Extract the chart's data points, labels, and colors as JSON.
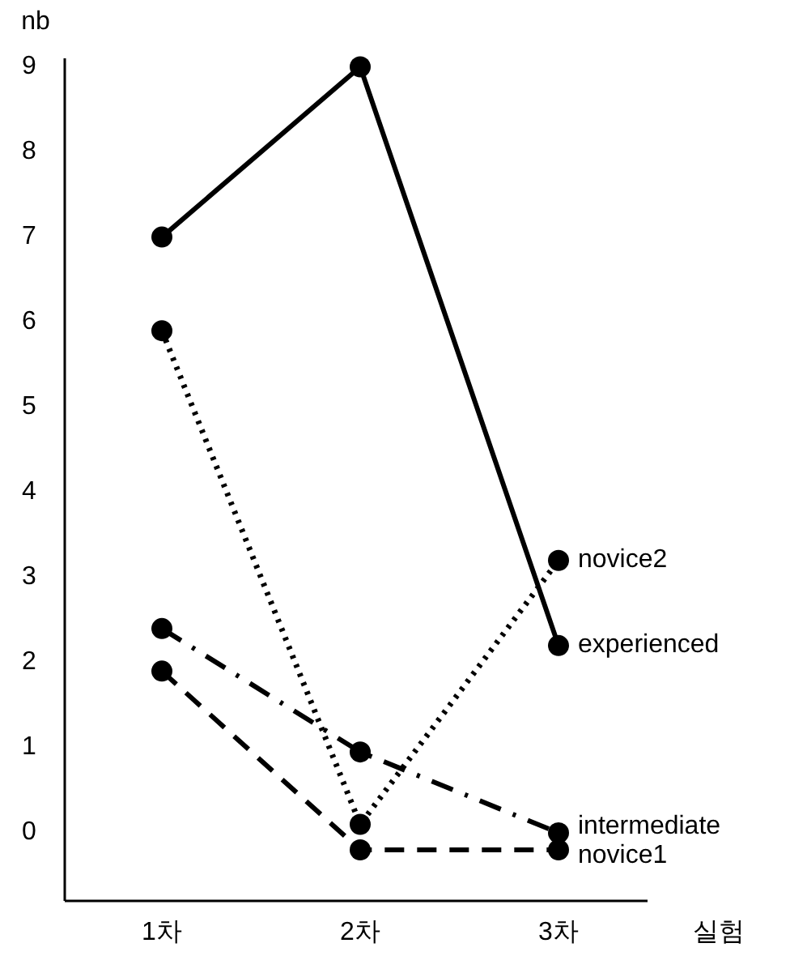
{
  "chart_data": {
    "type": "line",
    "xlabel": "실험",
    "ylabel": "nb",
    "categories": [
      "1차",
      "2차",
      "3차"
    ],
    "ylim": [
      -0.8,
      9.1
    ],
    "yticks": [
      0,
      1,
      2,
      3,
      4,
      5,
      6,
      7,
      8,
      9
    ],
    "grid": false,
    "marker": "circle",
    "series": [
      {
        "name": "experienced",
        "color": "#000000",
        "line_style": "solid",
        "values": [
          7.0,
          9.0,
          2.2
        ]
      },
      {
        "name": "novice2",
        "color": "#000000",
        "line_style": "dotted",
        "values": [
          5.9,
          0.1,
          3.2
        ]
      },
      {
        "name": "intermediate",
        "color": "#000000",
        "line_style": "dashdot",
        "values": [
          2.4,
          0.95,
          0.0
        ]
      },
      {
        "name": "novice1",
        "color": "#000000",
        "line_style": "dashed",
        "values": [
          1.9,
          -0.2,
          -0.2
        ]
      }
    ]
  }
}
